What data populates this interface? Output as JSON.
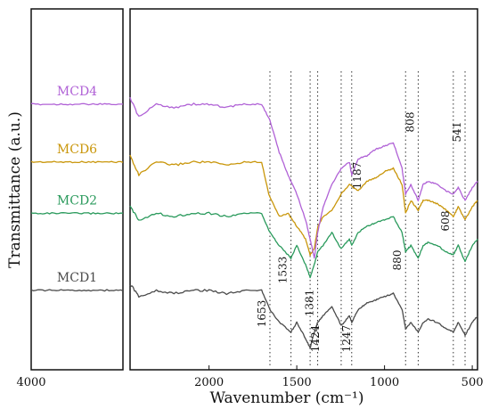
{
  "chart_data": {
    "type": "line",
    "title": "",
    "xlabel": "Wavenumber (cm⁻¹)",
    "ylabel": "Transmittance (a.u.)",
    "x_axis_reversed": true,
    "left_panel": {
      "xlim": [
        4000,
        3300
      ],
      "ticks": [
        4000
      ]
    },
    "right_panel": {
      "xlim": [
        2450,
        470
      ],
      "ticks": [
        2000,
        1500,
        1000,
        500
      ]
    },
    "grid": false,
    "legend": "none",
    "series": [
      {
        "name": "MCD6",
        "color": "#c9960a",
        "x": [
          4000,
          3300,
          2450,
          2400,
          2300,
          2200,
          2100,
          2000,
          1900,
          1800,
          1700,
          1660,
          1600,
          1550,
          1500,
          1450,
          1424,
          1400,
          1380,
          1350,
          1300,
          1247,
          1200,
          1150,
          1100,
          1050,
          1000,
          950,
          900,
          880,
          850,
          808,
          780,
          750,
          700,
          650,
          608,
          580,
          541,
          500,
          470
        ],
        "y": [
          0.62,
          0.62,
          0.64,
          0.58,
          0.62,
          0.61,
          0.62,
          0.62,
          0.61,
          0.62,
          0.62,
          0.52,
          0.45,
          0.46,
          0.42,
          0.38,
          0.33,
          0.35,
          0.42,
          0.45,
          0.47,
          0.52,
          0.55,
          0.53,
          0.56,
          0.57,
          0.59,
          0.6,
          0.55,
          0.46,
          0.5,
          0.47,
          0.5,
          0.5,
          0.49,
          0.47,
          0.45,
          0.48,
          0.44,
          0.48,
          0.5
        ]
      },
      {
        "name": "MCD4",
        "color": "#b061d6",
        "x": [
          4000,
          3300,
          2450,
          2400,
          2300,
          2200,
          2100,
          2000,
          1900,
          1800,
          1700,
          1653,
          1600,
          1550,
          1500,
          1450,
          1424,
          1400,
          1381,
          1350,
          1300,
          1247,
          1200,
          1187,
          1150,
          1100,
          1050,
          1000,
          950,
          900,
          880,
          850,
          808,
          780,
          750,
          700,
          650,
          608,
          580,
          541,
          500,
          470
        ],
        "y": [
          0.8,
          0.8,
          0.82,
          0.76,
          0.8,
          0.79,
          0.8,
          0.8,
          0.79,
          0.8,
          0.8,
          0.75,
          0.65,
          0.58,
          0.52,
          0.44,
          0.38,
          0.32,
          0.4,
          0.48,
          0.55,
          0.6,
          0.62,
          0.58,
          0.63,
          0.64,
          0.66,
          0.67,
          0.68,
          0.6,
          0.52,
          0.55,
          0.5,
          0.55,
          0.56,
          0.55,
          0.53,
          0.52,
          0.54,
          0.5,
          0.54,
          0.56
        ]
      },
      {
        "name": "MCD2",
        "color": "#2a9a5c",
        "x": [
          4000,
          3300,
          2450,
          2400,
          2300,
          2200,
          2100,
          2000,
          1900,
          1800,
          1700,
          1653,
          1600,
          1533,
          1500,
          1450,
          1424,
          1400,
          1381,
          1350,
          1300,
          1247,
          1200,
          1187,
          1150,
          1100,
          1050,
          1000,
          950,
          900,
          880,
          850,
          808,
          780,
          750,
          700,
          650,
          608,
          580,
          541,
          500,
          470
        ],
        "y": [
          0.46,
          0.46,
          0.48,
          0.44,
          0.46,
          0.45,
          0.46,
          0.46,
          0.45,
          0.46,
          0.46,
          0.4,
          0.36,
          0.32,
          0.36,
          0.3,
          0.26,
          0.3,
          0.34,
          0.36,
          0.4,
          0.35,
          0.38,
          0.36,
          0.4,
          0.42,
          0.43,
          0.44,
          0.45,
          0.4,
          0.34,
          0.36,
          0.32,
          0.36,
          0.37,
          0.36,
          0.34,
          0.33,
          0.36,
          0.31,
          0.36,
          0.38
        ]
      },
      {
        "name": "MCD1",
        "color": "#4a4a4a",
        "x": [
          4000,
          3300,
          2450,
          2400,
          2300,
          2200,
          2100,
          2000,
          1900,
          1800,
          1700,
          1653,
          1600,
          1533,
          1500,
          1450,
          1424,
          1400,
          1381,
          1350,
          1300,
          1247,
          1200,
          1187,
          1150,
          1100,
          1050,
          1000,
          950,
          900,
          880,
          850,
          808,
          780,
          750,
          700,
          650,
          608,
          580,
          541,
          500,
          470
        ],
        "y": [
          0.22,
          0.22,
          0.24,
          0.2,
          0.22,
          0.21,
          0.22,
          0.22,
          0.21,
          0.22,
          0.22,
          0.16,
          0.12,
          0.09,
          0.12,
          0.07,
          0.04,
          0.09,
          0.12,
          0.14,
          0.17,
          0.11,
          0.14,
          0.12,
          0.16,
          0.18,
          0.19,
          0.2,
          0.21,
          0.16,
          0.1,
          0.12,
          0.09,
          0.12,
          0.13,
          0.12,
          0.1,
          0.09,
          0.12,
          0.08,
          0.12,
          0.14
        ]
      }
    ],
    "annotations": [
      {
        "x": 1653,
        "label": "1653"
      },
      {
        "x": 1533,
        "label": "1533"
      },
      {
        "x": 1424,
        "label": "1424"
      },
      {
        "x": 1381,
        "label": "1381"
      },
      {
        "x": 1247,
        "label": "1247"
      },
      {
        "x": 1187,
        "label": "1187"
      },
      {
        "x": 880,
        "label": "880"
      },
      {
        "x": 808,
        "label": "808"
      },
      {
        "x": 608,
        "label": "608"
      },
      {
        "x": 541,
        "label": "541"
      }
    ]
  }
}
